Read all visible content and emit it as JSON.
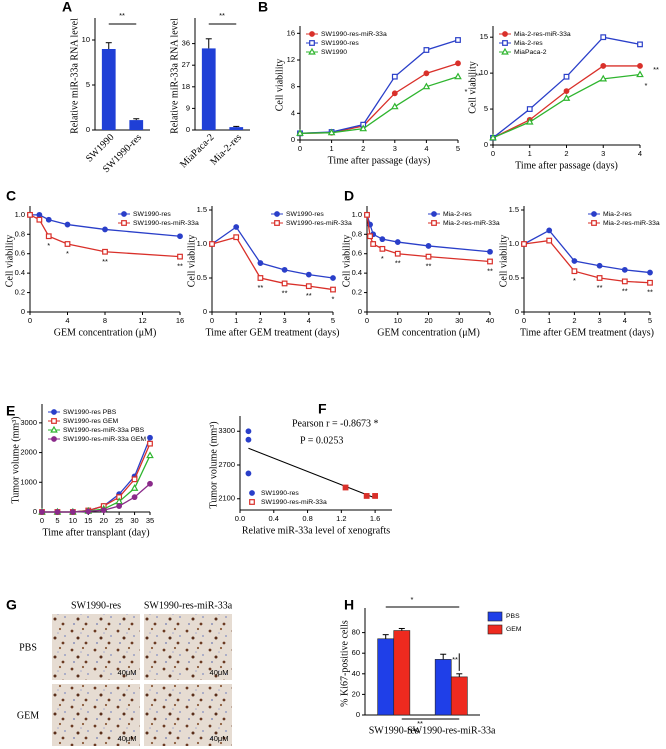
{
  "chart_data": [
    {
      "panel": "A",
      "type": "bar",
      "ylabel": "Relative miR-33a RNA level",
      "categories": [
        "SW1990",
        "SW1990-res"
      ],
      "values": [
        9,
        1.1
      ],
      "errors": [
        0.7,
        0.15
      ],
      "color": "#1f3fd6",
      "ylim": [
        0,
        12
      ],
      "yticks": [
        0,
        5,
        10
      ],
      "annotations": [
        "**"
      ]
    },
    {
      "panel": "A",
      "type": "bar",
      "ylabel": "Relative miR-33a RNA level",
      "categories": [
        "MiaPaca-2",
        "Mia-2-res"
      ],
      "values": [
        34,
        1.2
      ],
      "errors": [
        4,
        0.3
      ],
      "color": "#1f3fd6",
      "ylim": [
        0,
        45
      ],
      "yticks": [
        0,
        9,
        18,
        27,
        36
      ],
      "annotations": [
        "**"
      ]
    },
    {
      "panel": "B",
      "type": "line",
      "xlabel": "Time after passage (days)",
      "ylabel": "Cell viability",
      "x": [
        0,
        1,
        2,
        3,
        4,
        5
      ],
      "xlim": [
        0,
        5
      ],
      "xticks": [
        0,
        1,
        2,
        3,
        4,
        5
      ],
      "ylim": [
        0,
        16.5
      ],
      "yticks": [
        0,
        4,
        8,
        12,
        16
      ],
      "legend": "upper left",
      "series": [
        {
          "name": "SW1990-res-miR-33a",
          "color": "#d9302a",
          "marker": "circle",
          "values": [
            1,
            1.1,
            2.1,
            7,
            10,
            11.5
          ]
        },
        {
          "name": "SW1990-res",
          "color": "#2a3fc9",
          "marker": "square",
          "values": [
            1,
            1.2,
            2.3,
            9.5,
            13.5,
            15
          ]
        },
        {
          "name": "SW1990",
          "color": "#2fb52f",
          "marker": "triangle",
          "values": [
            1,
            1.1,
            1.7,
            5,
            8,
            9.5
          ]
        }
      ],
      "annotations": [
        "*",
        "**"
      ]
    },
    {
      "panel": "B",
      "type": "line",
      "xlabel": "Time after passage (days)",
      "ylabel": "Cell viability",
      "x": [
        0,
        1,
        2,
        3,
        4
      ],
      "xlim": [
        0,
        4
      ],
      "xticks": [
        0,
        1,
        2,
        3,
        4
      ],
      "ylim": [
        0,
        16
      ],
      "yticks": [
        0,
        5,
        10,
        15
      ],
      "legend": "upper left",
      "series": [
        {
          "name": "Mia-2-res-miR-33a",
          "color": "#d9302a",
          "marker": "circle",
          "values": [
            1,
            3.5,
            7.5,
            11,
            11
          ]
        },
        {
          "name": "Mia-2-res",
          "color": "#2a3fc9",
          "marker": "square",
          "values": [
            1,
            5,
            9.5,
            15,
            14
          ]
        },
        {
          "name": "MiaPaca-2",
          "color": "#2fb52f",
          "marker": "triangle",
          "values": [
            1,
            3.2,
            6.5,
            9.2,
            9.8
          ]
        }
      ],
      "annotations": [
        "*",
        "**"
      ]
    },
    {
      "panel": "C",
      "type": "line",
      "xlabel": "GEM concentration (μM)",
      "ylabel": "Cell viability",
      "x": [
        0,
        1,
        2,
        4,
        8,
        16
      ],
      "xlim": [
        0,
        16
      ],
      "xticks": [
        0,
        4,
        8,
        12,
        16
      ],
      "ylim": [
        0,
        1.05
      ],
      "yticks": [
        0,
        0.2,
        0.4,
        0.6,
        0.8,
        {
          "value": 1,
          "label": "1.0"
        }
      ],
      "legend": "upper right",
      "series": [
        {
          "name": "SW1990-res",
          "color": "#2a3fc9",
          "marker": "circle",
          "values": [
            1,
            1,
            0.95,
            0.9,
            0.85,
            0.78
          ]
        },
        {
          "name": "SW1990-res-miR-33a",
          "color": "#d9302a",
          "marker": "square",
          "values": [
            1,
            0.95,
            0.78,
            0.7,
            0.62,
            0.57
          ]
        }
      ],
      "annotations": [
        "*",
        "*",
        "**",
        "**"
      ]
    },
    {
      "panel": "C",
      "type": "line",
      "xlabel": "Time after GEM treatment (days)",
      "ylabel": "Cell viability",
      "x": [
        0,
        1,
        2,
        3,
        4,
        5
      ],
      "xlim": [
        0,
        5
      ],
      "xticks": [
        0,
        1,
        2,
        3,
        4,
        5
      ],
      "ylim": [
        0,
        1.5
      ],
      "yticks": [
        0,
        0.5,
        {
          "value": 1,
          "label": "1.0"
        },
        1.5
      ],
      "legend": "upper right",
      "series": [
        {
          "name": "SW1990-res",
          "color": "#2a3fc9",
          "marker": "circle",
          "values": [
            1,
            1.25,
            0.72,
            0.62,
            0.55,
            0.5
          ]
        },
        {
          "name": "SW1990-res-miR-33a",
          "color": "#d9302a",
          "marker": "square",
          "values": [
            1,
            1.1,
            0.5,
            0.42,
            0.38,
            0.33
          ]
        }
      ],
      "annotations": [
        "**",
        "**",
        "**",
        "*"
      ]
    },
    {
      "panel": "D",
      "type": "line",
      "xlabel": "GEM concentration (μM)",
      "ylabel": "Cell viability",
      "x": [
        0,
        1,
        2,
        5,
        10,
        20,
        40
      ],
      "xlim": [
        0,
        40
      ],
      "xticks": [
        0,
        10,
        20,
        30,
        40
      ],
      "ylim": [
        0,
        1.05
      ],
      "yticks": [
        0,
        0.2,
        0.4,
        0.6,
        0.8,
        {
          "value": 1,
          "label": "1.0"
        }
      ],
      "legend": "upper right",
      "series": [
        {
          "name": "Mia-2-res",
          "color": "#2a3fc9",
          "marker": "circle",
          "values": [
            1,
            0.9,
            0.8,
            0.75,
            0.72,
            0.68,
            0.62
          ]
        },
        {
          "name": "Mia-2-res-miR-33a",
          "color": "#d9302a",
          "marker": "square",
          "values": [
            1,
            0.78,
            0.7,
            0.65,
            0.6,
            0.57,
            0.52
          ]
        }
      ],
      "annotations": [
        "*",
        "**",
        "**",
        "**"
      ]
    },
    {
      "panel": "D",
      "type": "line",
      "xlabel": "Time after GEM treatment (days)",
      "ylabel": "Cell viability",
      "x": [
        0,
        1,
        2,
        3,
        4,
        5
      ],
      "xlim": [
        0,
        5
      ],
      "xticks": [
        0,
        1,
        2,
        3,
        4,
        5
      ],
      "ylim": [
        0,
        1.5
      ],
      "yticks": [
        0,
        0.5,
        {
          "value": 1,
          "label": "1.0"
        },
        1.5
      ],
      "legend": "upper right",
      "series": [
        {
          "name": "Mia-2-res",
          "color": "#2a3fc9",
          "marker": "circle",
          "values": [
            1,
            1.2,
            0.75,
            0.68,
            0.62,
            0.58
          ]
        },
        {
          "name": "Mia-2-res-miR-33a",
          "color": "#d9302a",
          "marker": "square",
          "values": [
            1,
            1.05,
            0.6,
            0.5,
            0.45,
            0.43
          ]
        }
      ],
      "annotations": [
        "*",
        "**",
        "**",
        "**"
      ]
    },
    {
      "panel": "E",
      "type": "line",
      "xlabel": "Time after transplant (day)",
      "ylabel": "Tumor volume (mm³)",
      "x": [
        0,
        5,
        10,
        15,
        20,
        25,
        30,
        35
      ],
      "xlim": [
        0,
        35
      ],
      "xticks": [
        0,
        5,
        10,
        15,
        20,
        25,
        30,
        35
      ],
      "ylim": [
        0,
        3500
      ],
      "yticks": [
        0,
        1000,
        2000,
        3000
      ],
      "legend": "upper left",
      "series": [
        {
          "name": "SW1990-res PBS",
          "color": "#2a3fc9",
          "marker": "circle",
          "values": [
            0,
            0,
            0,
            50,
            200,
            600,
            1200,
            2500
          ]
        },
        {
          "name": "SW1990-res GEM",
          "color": "#d9302a",
          "marker": "square",
          "values": [
            0,
            0,
            0,
            50,
            200,
            500,
            1100,
            2300
          ]
        },
        {
          "name": "SW1990-res-miR-33a PBS",
          "color": "#2fb52f",
          "marker": "triangle",
          "values": [
            0,
            0,
            0,
            30,
            100,
            350,
            800,
            1900
          ]
        },
        {
          "name": "SW1990-res-miR-33a GEM",
          "color": "#8a2a8a",
          "marker": "circle",
          "values": [
            0,
            0,
            0,
            20,
            60,
            200,
            500,
            950
          ]
        }
      ]
    },
    {
      "panel": "F",
      "type": "scatter",
      "xlabel": "Relative miR-33a  level of xenografts",
      "ylabel": "Tumor volume (mm³)",
      "xlim": [
        0,
        1.8
      ],
      "xticks": [
        {
          "value": 0,
          "label": "0.0"
        },
        0.4,
        0.8,
        1.2,
        1.6
      ],
      "ylim": [
        1900,
        3500
      ],
      "yticks": [
        2100,
        2700,
        3300
      ],
      "legend": "lower left",
      "series": [
        {
          "name": "SW1990-res",
          "color": "#2a3fc9",
          "marker": "circle",
          "x": [
            0.1,
            0.1,
            0.1
          ],
          "values": [
            3300,
            3150,
            2550
          ]
        },
        {
          "name": "SW1990-res-miR-33a",
          "color": "#d9302a",
          "marker": "square",
          "x": [
            1.25,
            1.5,
            1.6
          ],
          "values": [
            2300,
            2150,
            2150
          ]
        }
      ],
      "annotations": [
        "Pearson r = -0.8673 *",
        "P = 0.0253"
      ]
    },
    {
      "panel": "H",
      "type": "bar",
      "ylabel": "% Ki67-positive cells",
      "categories": [
        "SW1990-res",
        "SW1990-res-miR-33a"
      ],
      "ylim": [
        0,
        100
      ],
      "yticks": [
        0,
        20,
        40,
        60,
        80
      ],
      "legend": "upper right",
      "series": [
        {
          "name": "PBS",
          "color": "#1f3fe8",
          "values": [
            74,
            54
          ],
          "errors": [
            4,
            5
          ]
        },
        {
          "name": "GEM",
          "color": "#ee2a1f",
          "values": [
            82,
            37
          ],
          "errors": [
            2,
            3
          ]
        }
      ],
      "annotations": [
        "*",
        "**",
        "**"
      ]
    }
  ],
  "figure_g": {
    "panel": "G",
    "columns": [
      "SW1990-res",
      "SW1990-res-miR-33a"
    ],
    "rows": [
      "PBS",
      "GEM"
    ],
    "scale_bar": "40μM"
  }
}
